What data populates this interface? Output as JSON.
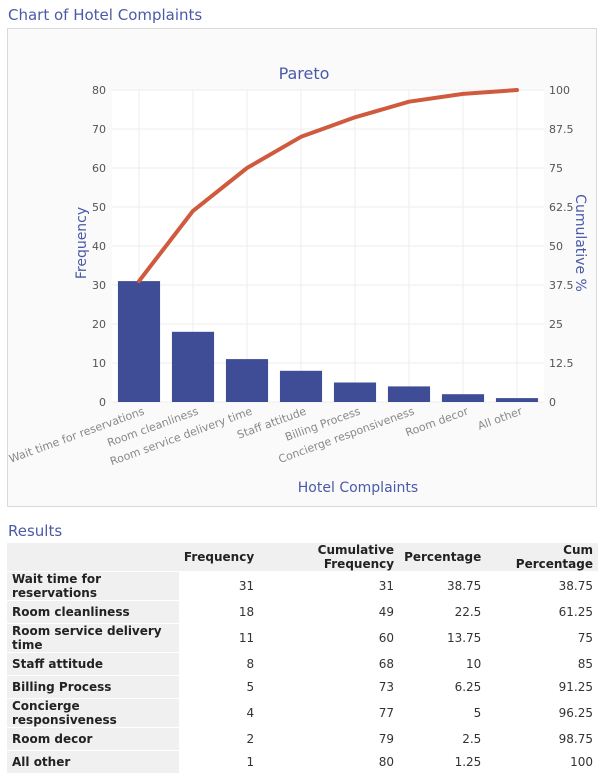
{
  "header": {
    "chart_section_title": "Chart of Hotel Complaints",
    "results_section_title": "Results"
  },
  "colors": {
    "bar": "#3f4c96",
    "line": "#d05a3e",
    "title": "#4a5aa8"
  },
  "chart_data": {
    "type": "bar",
    "title": "Pareto",
    "xlabel": "Hotel Complaints",
    "ylabel": "Frequency",
    "y2label": "Cumulative %",
    "categories": [
      "Wait time for reservations",
      "Room cleanliness",
      "Room service delivery time",
      "Staff attitude",
      "Billing Process",
      "Concierge responsiveness",
      "Room decor",
      "All other"
    ],
    "values": [
      31,
      18,
      11,
      8,
      5,
      4,
      2,
      1
    ],
    "cumulative_percent": [
      38.75,
      61.25,
      75,
      85,
      91.25,
      96.25,
      98.75,
      100
    ],
    "ylim": [
      0,
      80
    ],
    "y2lim": [
      0,
      100
    ],
    "yticks": [
      "0",
      "10",
      "20",
      "30",
      "40",
      "50",
      "60",
      "70",
      "80"
    ],
    "y2ticks": [
      "0",
      "12.5",
      "25",
      "37.5",
      "50",
      "62.5",
      "75",
      "87.5",
      "100"
    ],
    "grid": true
  },
  "results": {
    "columns": [
      "Frequency",
      "Cumulative Frequency",
      "Percentage",
      "Cum Percentage"
    ],
    "rows": [
      {
        "label": "Wait time for reservations",
        "cells": [
          "31",
          "31",
          "38.75",
          "38.75"
        ]
      },
      {
        "label": "Room cleanliness",
        "cells": [
          "18",
          "49",
          "22.5",
          "61.25"
        ]
      },
      {
        "label": "Room service delivery time",
        "cells": [
          "11",
          "60",
          "13.75",
          "75"
        ]
      },
      {
        "label": "Staff attitude",
        "cells": [
          "8",
          "68",
          "10",
          "85"
        ]
      },
      {
        "label": "Billing Process",
        "cells": [
          "5",
          "73",
          "6.25",
          "91.25"
        ]
      },
      {
        "label": "Concierge responsiveness",
        "cells": [
          "4",
          "77",
          "5",
          "96.25"
        ]
      },
      {
        "label": "Room decor",
        "cells": [
          "2",
          "79",
          "2.5",
          "98.75"
        ]
      },
      {
        "label": "All other",
        "cells": [
          "1",
          "80",
          "1.25",
          "100"
        ]
      }
    ]
  }
}
